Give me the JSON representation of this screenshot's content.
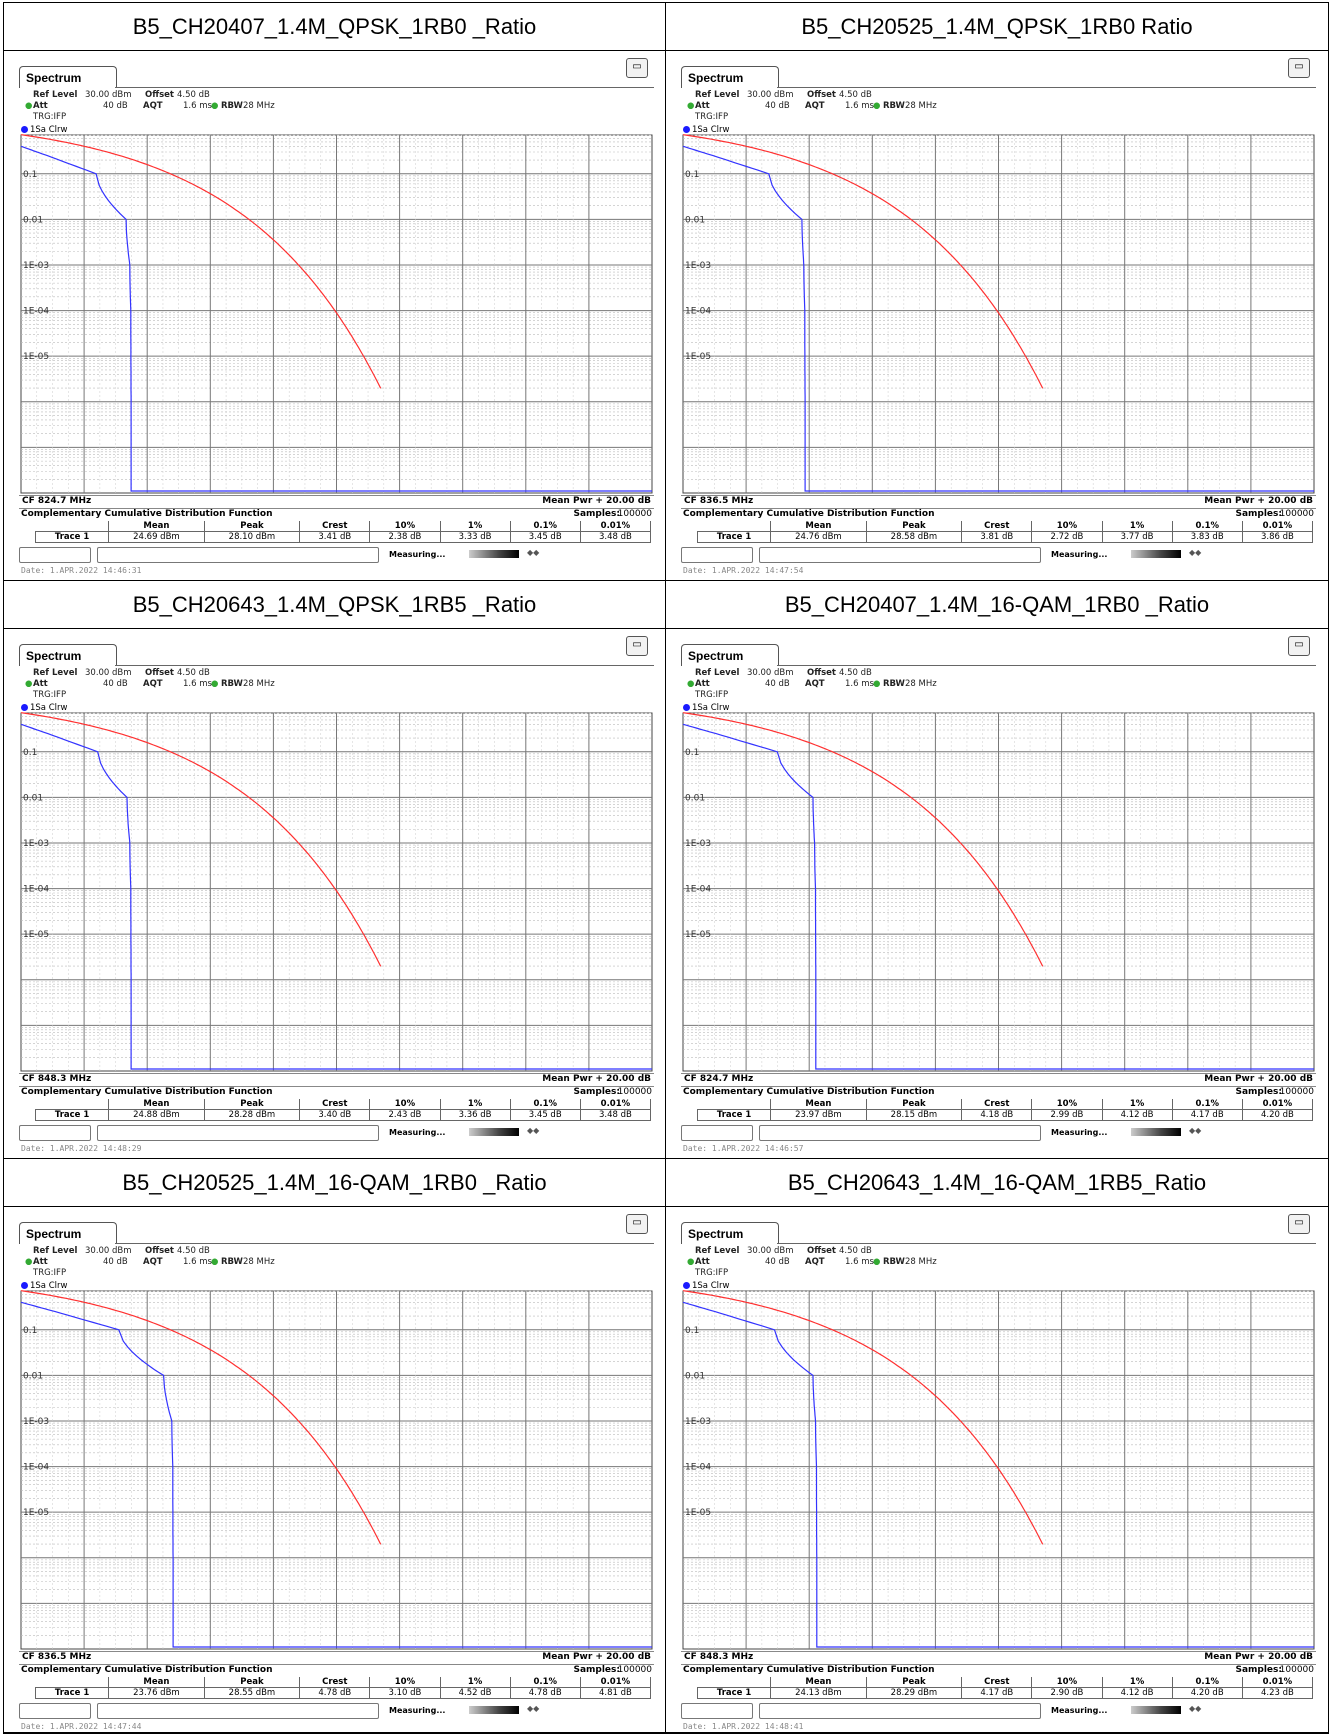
{
  "common": {
    "tab_label": "Spectrum",
    "ref_level_label": "Ref Level",
    "ref_level": "30.00 dBm",
    "offset_label": "Offset",
    "offset": "4.50 dB",
    "att_label": "Att",
    "att": "40 dB",
    "aqt_label": "AQT",
    "aqt": "1.6 ms",
    "rbw_label": "RBW",
    "rbw": "28 MHz",
    "trg": "TRG:IFP",
    "trace_label": "1Sa Clrw",
    "y_ticks": [
      "0.1",
      "0.01",
      "1E-03",
      "1E-04",
      "1E-05"
    ],
    "mean_pwr": "Mean Pwr + 20.00 dB",
    "ccdf_title": "Complementary Cumulative Distribution Function",
    "samples_label": "Samples:",
    "samples": "100000",
    "col_headers": [
      "Mean",
      "Peak",
      "Crest",
      "10%",
      "1%",
      "0.1%",
      "0.01%"
    ],
    "row_label": "Trace 1",
    "measuring": "Measuring...",
    "colors": {
      "measured": "#3333ff",
      "reference": "#ff3030",
      "grid": "#888888"
    }
  },
  "chart_data": [
    {
      "type": "line",
      "title": "B5_CH20407_1.4M_QPSK_1RB0 _Ratio",
      "cf": "CF 824.7 MHz",
      "values": [
        "24.69 dBm",
        "28.10 dBm",
        "3.41 dB",
        "2.38 dB",
        "3.33 dB",
        "3.45 dB",
        "3.48 dB"
      ],
      "crest_db": [
        2.38,
        3.33,
        3.45,
        3.48
      ],
      "date": "Date: 1.APR.2022 14:46:31"
    },
    {
      "type": "line",
      "title": "B5_CH20525_1.4M_QPSK_1RB0 Ratio",
      "cf": "CF 836.5 MHz",
      "values": [
        "24.76 dBm",
        "28.58 dBm",
        "3.81 dB",
        "2.72 dB",
        "3.77 dB",
        "3.83 dB",
        "3.86 dB"
      ],
      "crest_db": [
        2.72,
        3.77,
        3.83,
        3.86
      ],
      "date": "Date: 1.APR.2022 14:47:54"
    },
    {
      "type": "line",
      "title": "B5_CH20643_1.4M_QPSK_1RB5 _Ratio",
      "cf": "CF 848.3 MHz",
      "values": [
        "24.88 dBm",
        "28.28 dBm",
        "3.40 dB",
        "2.43 dB",
        "3.36 dB",
        "3.45 dB",
        "3.48 dB"
      ],
      "crest_db": [
        2.43,
        3.36,
        3.45,
        3.48
      ],
      "date": "Date: 1.APR.2022 14:48:29"
    },
    {
      "type": "line",
      "title": "B5_CH20407_1.4M_16-QAM_1RB0 _Ratio",
      "cf": "CF 824.7 MHz",
      "values": [
        "23.97 dBm",
        "28.15 dBm",
        "4.18 dB",
        "2.99 dB",
        "4.12 dB",
        "4.17 dB",
        "4.20 dB"
      ],
      "crest_db": [
        2.99,
        4.12,
        4.17,
        4.2
      ],
      "date": "Date: 1.APR.2022 14:46:57"
    },
    {
      "type": "line",
      "title": "B5_CH20525_1.4M_16-QAM_1RB0 _Ratio",
      "cf": "CF 836.5 MHz",
      "values": [
        "23.76 dBm",
        "28.55 dBm",
        "4.78 dB",
        "3.10 dB",
        "4.52 dB",
        "4.78 dB",
        "4.81 dB"
      ],
      "crest_db": [
        3.1,
        4.52,
        4.78,
        4.81
      ],
      "date": "Date: 1.APR.2022 14:47:44"
    },
    {
      "type": "line",
      "title": "B5_CH20643_1.4M_16-QAM_1RB5_Ratio",
      "cf": "CF 848.3 MHz",
      "values": [
        "24.13 dBm",
        "28.29 dBm",
        "4.17 dB",
        "2.90 dB",
        "4.12 dB",
        "4.20 dB",
        "4.23 dB"
      ],
      "crest_db": [
        2.9,
        4.12,
        4.2,
        4.23
      ],
      "date": "Date: 1.APR.2022 14:48:41"
    }
  ]
}
